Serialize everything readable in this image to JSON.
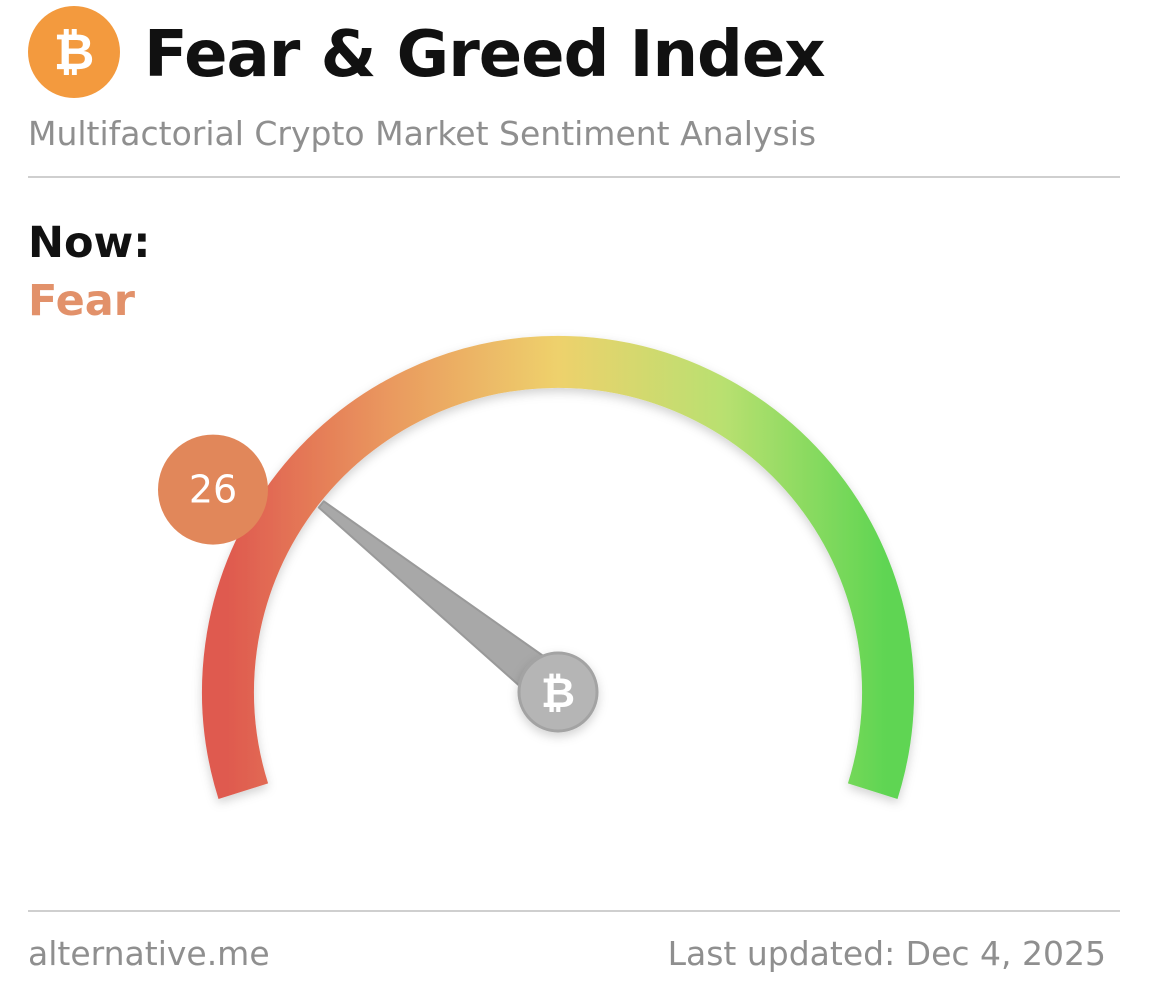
{
  "header": {
    "logo_icon": "bitcoin-icon",
    "logo_symbol": "₿",
    "title": "Fear & Greed Index",
    "subtitle": "Multifactorial Crypto Market Sentiment Analysis"
  },
  "current": {
    "label": "Now:",
    "classification": "Fear",
    "value_text": "26"
  },
  "chart_data": {
    "type": "gauge",
    "value": 26,
    "range": [
      0,
      100
    ],
    "value_label": "26",
    "classification": "Fear",
    "gradient_colors": [
      "#df5a4f",
      "#ea9a5f",
      "#eed16c",
      "#b9e070",
      "#5ed552"
    ],
    "hub_icon": "bitcoin-icon"
  },
  "footer": {
    "source": "alternative.me",
    "updated": "Last updated: Dec 4, 2025"
  },
  "colors": {
    "accent_orange": "#f39a3e",
    "fear": "#e2916a",
    "badge": "#e1875a",
    "muted_text": "#8f8f8f",
    "title_text": "#111111"
  }
}
